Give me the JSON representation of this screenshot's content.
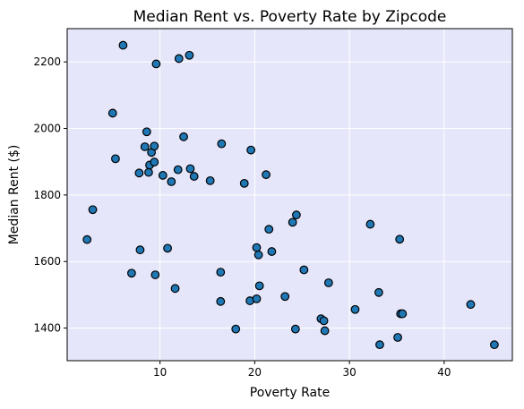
{
  "chart_data": {
    "type": "scatter",
    "title": "Median Rent vs. Poverty Rate by Zipcode",
    "xlabel": "Poverty Rate",
    "ylabel": "Median Rent ($)",
    "xlim": [
      0.2,
      47.2
    ],
    "ylim": [
      1302,
      2300
    ],
    "xticks": [
      10,
      20,
      30,
      40
    ],
    "yticks": [
      1400,
      1600,
      1800,
      2000,
      2200
    ],
    "grid": true,
    "colors": {
      "plot_background": "#e6e6fa",
      "marker": "#1f77b4",
      "marker_edge": "#000000",
      "grid": "#ffffff"
    },
    "points": [
      {
        "x": 2.3,
        "y": 1666
      },
      {
        "x": 2.9,
        "y": 1756
      },
      {
        "x": 5.0,
        "y": 2046
      },
      {
        "x": 5.3,
        "y": 1909
      },
      {
        "x": 6.1,
        "y": 2250
      },
      {
        "x": 7.0,
        "y": 1565
      },
      {
        "x": 7.8,
        "y": 1866
      },
      {
        "x": 7.9,
        "y": 1635
      },
      {
        "x": 8.4,
        "y": 1945
      },
      {
        "x": 8.6,
        "y": 1990
      },
      {
        "x": 8.8,
        "y": 1868
      },
      {
        "x": 8.9,
        "y": 1890
      },
      {
        "x": 9.1,
        "y": 1928
      },
      {
        "x": 9.4,
        "y": 1899
      },
      {
        "x": 9.4,
        "y": 1947
      },
      {
        "x": 9.5,
        "y": 1560
      },
      {
        "x": 9.6,
        "y": 2194
      },
      {
        "x": 10.3,
        "y": 1859
      },
      {
        "x": 10.8,
        "y": 1640
      },
      {
        "x": 11.2,
        "y": 1840
      },
      {
        "x": 11.6,
        "y": 1519
      },
      {
        "x": 11.9,
        "y": 1876
      },
      {
        "x": 12.0,
        "y": 2210
      },
      {
        "x": 12.5,
        "y": 1975
      },
      {
        "x": 13.1,
        "y": 2220
      },
      {
        "x": 13.2,
        "y": 1879
      },
      {
        "x": 13.6,
        "y": 1856
      },
      {
        "x": 15.3,
        "y": 1843
      },
      {
        "x": 16.4,
        "y": 1568
      },
      {
        "x": 16.4,
        "y": 1480
      },
      {
        "x": 16.5,
        "y": 1954
      },
      {
        "x": 18.0,
        "y": 1397
      },
      {
        "x": 18.9,
        "y": 1835
      },
      {
        "x": 19.5,
        "y": 1482
      },
      {
        "x": 19.6,
        "y": 1935
      },
      {
        "x": 20.2,
        "y": 1642
      },
      {
        "x": 20.2,
        "y": 1488
      },
      {
        "x": 20.4,
        "y": 1620
      },
      {
        "x": 20.5,
        "y": 1527
      },
      {
        "x": 21.2,
        "y": 1861
      },
      {
        "x": 21.5,
        "y": 1697
      },
      {
        "x": 21.8,
        "y": 1630
      },
      {
        "x": 23.2,
        "y": 1495
      },
      {
        "x": 24.0,
        "y": 1718
      },
      {
        "x": 24.3,
        "y": 1397
      },
      {
        "x": 24.4,
        "y": 1740
      },
      {
        "x": 25.2,
        "y": 1575
      },
      {
        "x": 27.0,
        "y": 1428
      },
      {
        "x": 27.3,
        "y": 1422
      },
      {
        "x": 27.4,
        "y": 1392
      },
      {
        "x": 27.8,
        "y": 1536
      },
      {
        "x": 30.6,
        "y": 1456
      },
      {
        "x": 32.2,
        "y": 1712
      },
      {
        "x": 33.1,
        "y": 1507
      },
      {
        "x": 33.2,
        "y": 1350
      },
      {
        "x": 35.1,
        "y": 1372
      },
      {
        "x": 35.3,
        "y": 1667
      },
      {
        "x": 35.4,
        "y": 1443
      },
      {
        "x": 35.6,
        "y": 1443
      },
      {
        "x": 42.8,
        "y": 1471
      },
      {
        "x": 45.3,
        "y": 1350
      }
    ]
  }
}
